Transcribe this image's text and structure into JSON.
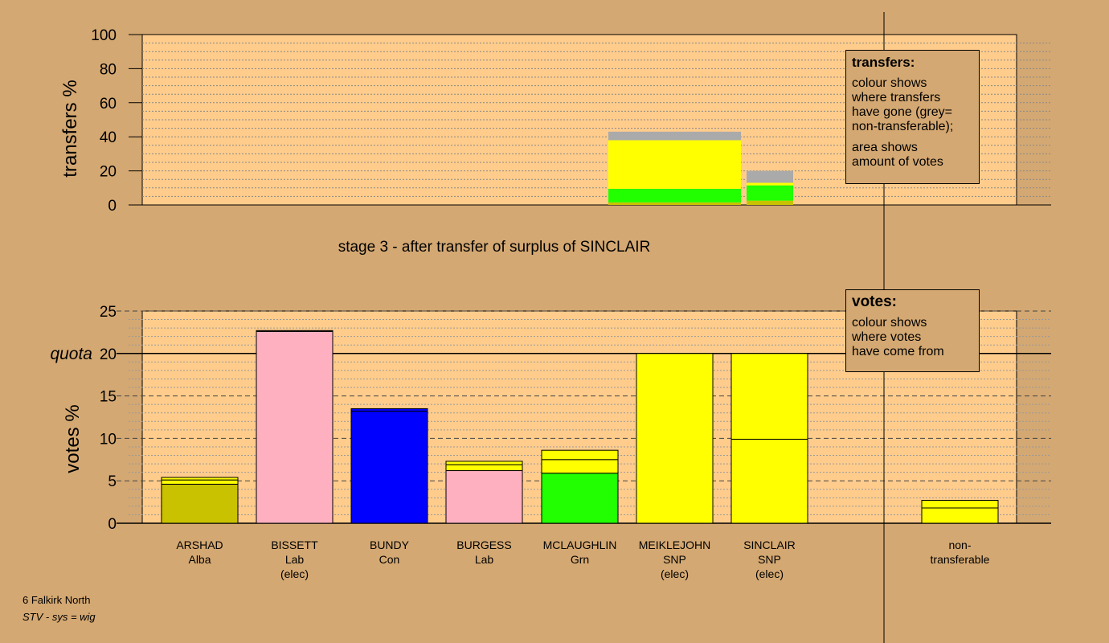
{
  "chart_data": [
    {
      "type": "bar",
      "subtype": "stacked",
      "panel": "transfers",
      "ylabel": "transfers %",
      "ylim": [
        0,
        100
      ],
      "yticks": [
        0,
        20,
        40,
        60,
        80,
        100
      ],
      "grid": true,
      "bars": [
        {
          "source": "MEIKLEJOHN",
          "segments": [
            {
              "party": "Alba",
              "value": 1.5,
              "color": "#c8c200"
            },
            {
              "party": "Grn",
              "value": 8,
              "color": "#22ff00"
            },
            {
              "party": "SNP",
              "value": 28.5,
              "color": "#ffff00"
            },
            {
              "party": "non-transferable",
              "value": 5,
              "color": "#aaaaaa"
            }
          ]
        },
        {
          "source": "SINCLAIR",
          "segments": [
            {
              "party": "Alba",
              "value": 2.5,
              "color": "#c8c200"
            },
            {
              "party": "Grn",
              "value": 9,
              "color": "#22ff00"
            },
            {
              "party": "SNP",
              "value": 1.5,
              "color": "#ffff00"
            },
            {
              "party": "non-transferable",
              "value": 7,
              "color": "#aaaaaa"
            }
          ]
        }
      ],
      "legend": {
        "title": "transfers:",
        "lines": [
          "colour shows",
          "where transfers",
          "have gone (grey=",
          "non-transferable);"
        ],
        "lines2": [
          "area shows",
          "amount of votes"
        ]
      }
    },
    {
      "type": "bar",
      "subtype": "stacked",
      "panel": "votes",
      "title": "stage 3 - after transfer of surplus of SINCLAIR",
      "ylabel": "votes %",
      "ylim": [
        0,
        25
      ],
      "yticks": [
        0,
        5,
        10,
        15,
        20,
        25
      ],
      "quota": {
        "label": "quota",
        "value": 20
      },
      "grid": true,
      "categories": [
        {
          "name": "ARSHAD",
          "party": "Alba",
          "status": ""
        },
        {
          "name": "BISSETT",
          "party": "Lab",
          "status": "(elec)"
        },
        {
          "name": "BUNDY",
          "party": "Con",
          "status": ""
        },
        {
          "name": "BURGESS",
          "party": "Lab",
          "status": ""
        },
        {
          "name": "MCLAUGHLIN",
          "party": "Grn",
          "status": ""
        },
        {
          "name": "MEIKLEJOHN",
          "party": "SNP",
          "status": "(elec)"
        },
        {
          "name": "SINCLAIR",
          "party": "SNP",
          "status": "(elec)"
        },
        {
          "name": "non-",
          "party": "transferable",
          "status": ""
        }
      ],
      "stacks": [
        [
          {
            "value": 4.6,
            "color": "#c8c200"
          },
          {
            "value": 0.5,
            "color": "#ffff00"
          },
          {
            "value": 0.3,
            "color": "#ffff00"
          }
        ],
        [
          {
            "value": 22.6,
            "color": "#ffb0c0"
          },
          {
            "value": 0.1,
            "color": "#ffb0c0"
          }
        ],
        [
          {
            "value": 13.2,
            "color": "#0000ff"
          },
          {
            "value": 0.3,
            "color": "#0000ff"
          }
        ],
        [
          {
            "value": 6.2,
            "color": "#ffb0c0"
          },
          {
            "value": 0.7,
            "color": "#ffff00"
          },
          {
            "value": 0.4,
            "color": "#ffff00"
          }
        ],
        [
          {
            "value": 5.9,
            "color": "#22ff00"
          },
          {
            "value": 1.6,
            "color": "#ffff00"
          },
          {
            "value": 1.1,
            "color": "#ffff00"
          }
        ],
        [
          {
            "value": 20.0,
            "color": "#ffff00"
          }
        ],
        [
          {
            "value": 9.9,
            "color": "#ffff00"
          },
          {
            "value": 10.1,
            "color": "#ffff00"
          }
        ],
        [
          {
            "value": 1.8,
            "color": "#ffff00"
          },
          {
            "value": 0.9,
            "color": "#ffff00"
          }
        ]
      ],
      "legend": {
        "title": "votes:",
        "lines": [
          "colour shows",
          "where votes",
          "have come from"
        ]
      }
    }
  ],
  "footer": {
    "line1": "6 Falkirk North",
    "line2": "STV - sys = wig"
  },
  "colors": {
    "background": "#d4a872",
    "plot": "#ffcc8c"
  }
}
